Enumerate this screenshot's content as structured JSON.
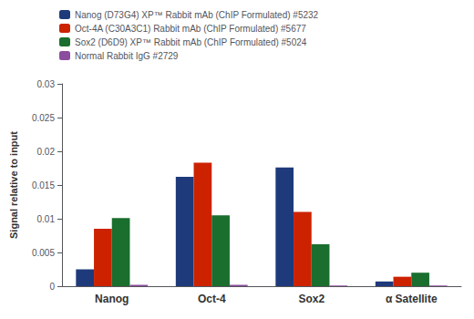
{
  "chart_data": {
    "type": "bar",
    "categories": [
      "Nanog",
      "Oct-4",
      "Sox2",
      "α Satellite"
    ],
    "series": [
      {
        "name": "Nanog (D73G4) XP™ Rabbit mAb (ChIP Formulated) #5232",
        "color": "#1e3a7a",
        "values": [
          0.0025,
          0.0162,
          0.0176,
          0.0007
        ]
      },
      {
        "name": "Oct-4A (C30A3C1) Rabbit mAb (ChIP Formulated) #5677",
        "color": "#cc2200",
        "values": [
          0.0085,
          0.0183,
          0.011,
          0.0014
        ]
      },
      {
        "name": "Sox2 (D6D9) XP™ Rabbit mAb (ChIP Formulated) #5024",
        "color": "#1a6e2e",
        "values": [
          0.0101,
          0.0105,
          0.0062,
          0.002
        ]
      },
      {
        "name": "Normal Rabbit IgG #2729",
        "color": "#8b4d9e",
        "values": [
          0.0002,
          0.0002,
          0.0001,
          0.0001
        ]
      }
    ],
    "ylabel": "Signal relative to input",
    "ylim": [
      0,
      0.03
    ],
    "yticks": [
      0,
      0.005,
      0.01,
      0.015,
      0.02,
      0.025,
      0.03
    ],
    "grid": false,
    "legend": "upper left"
  }
}
